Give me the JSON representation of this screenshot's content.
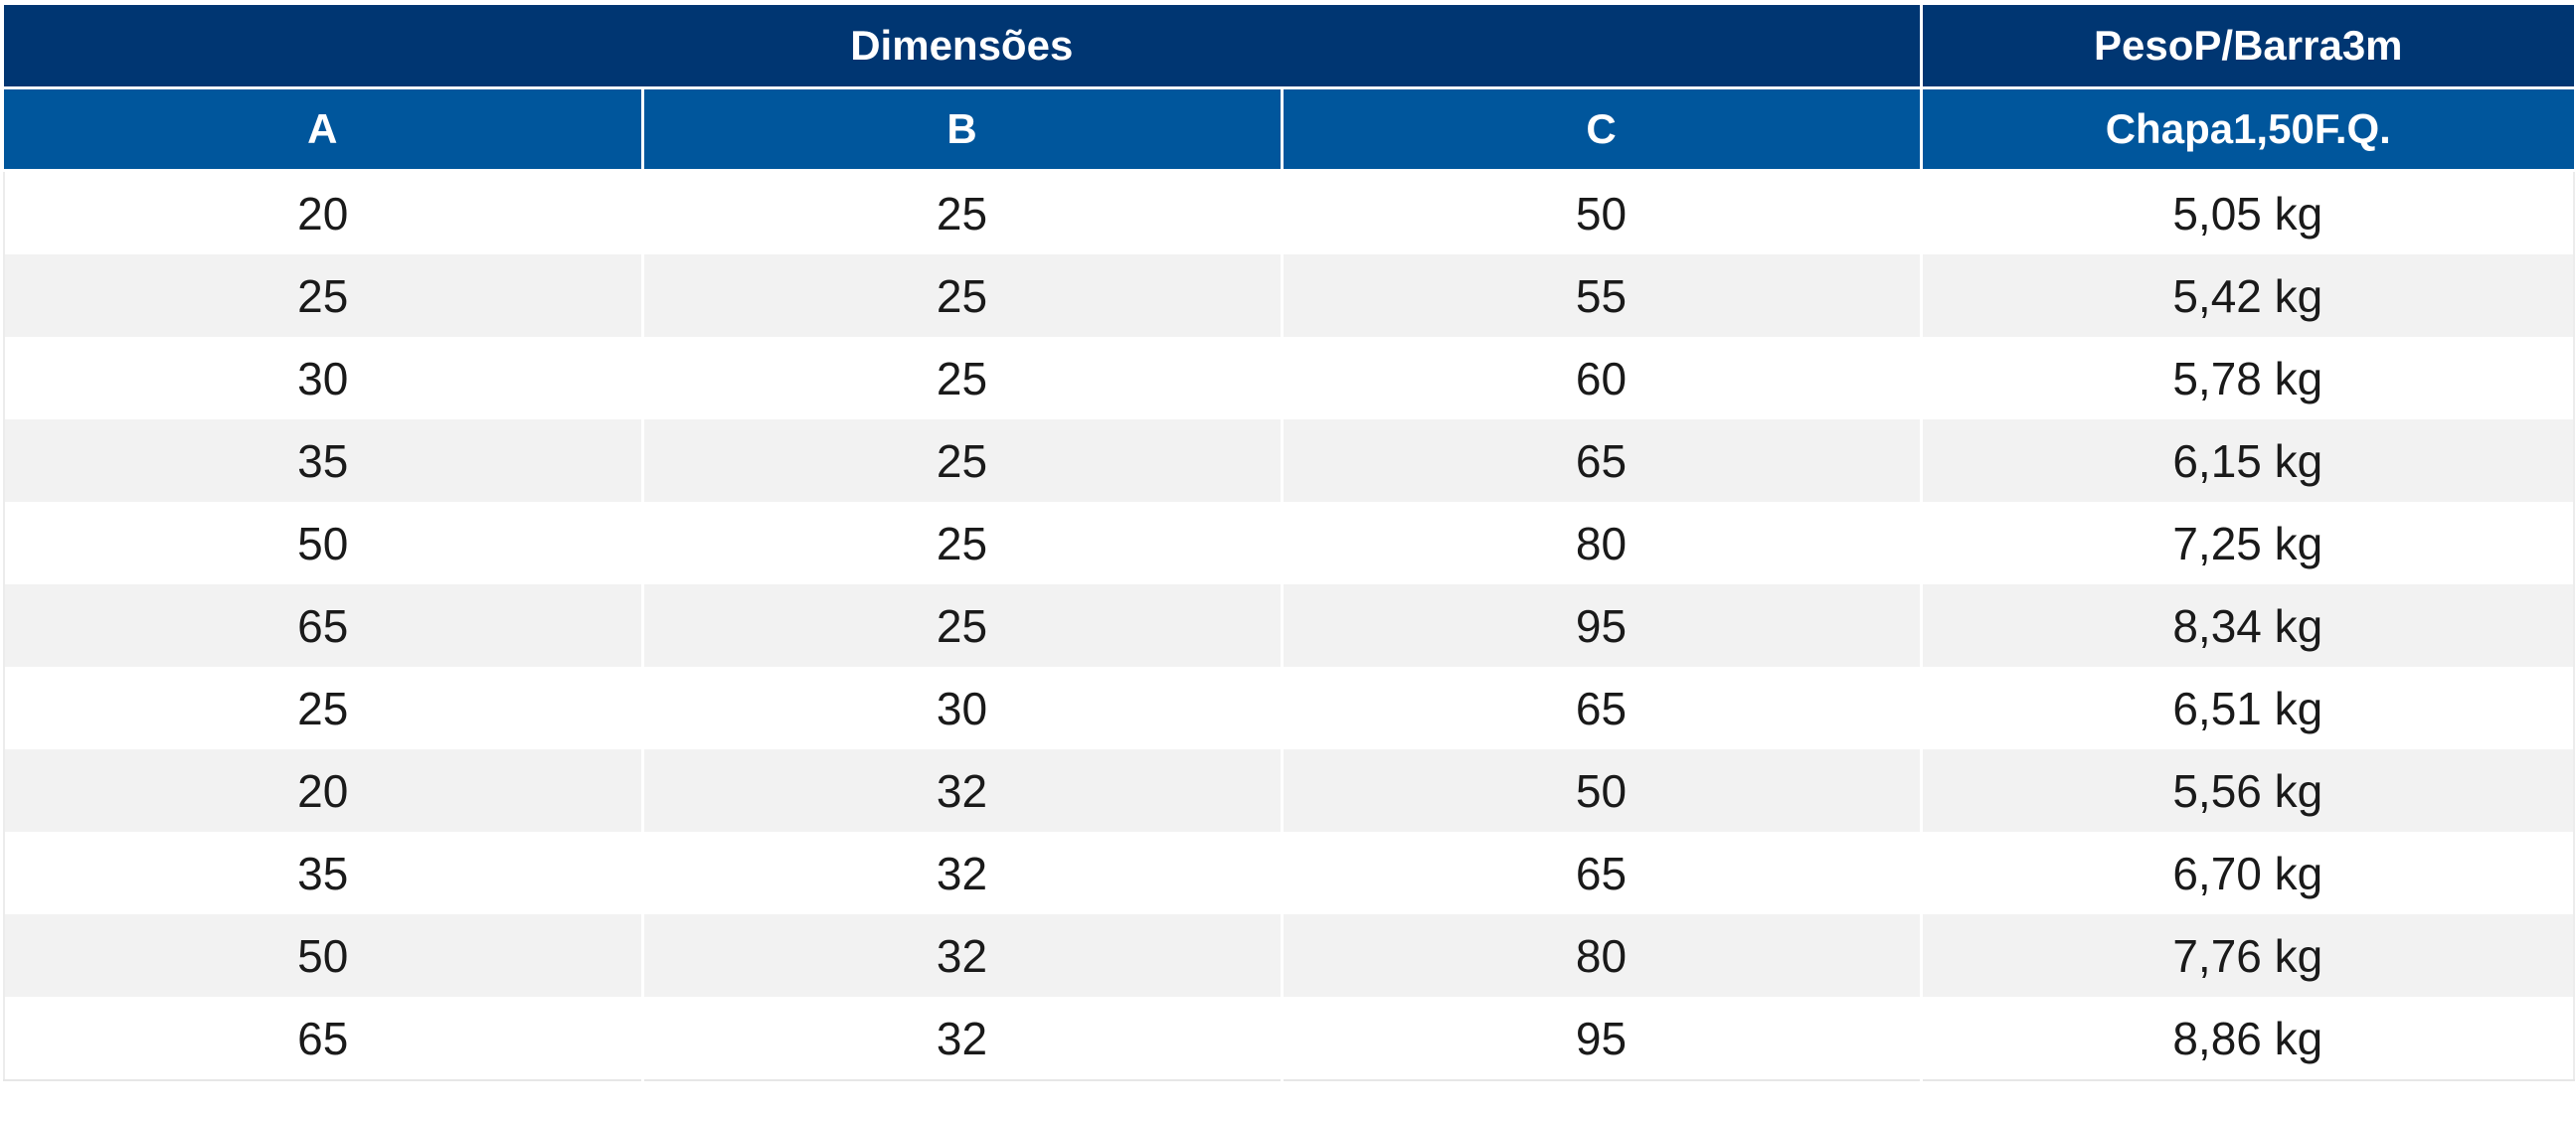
{
  "header": {
    "group_dimensions": "Dimensões",
    "group_weight": "PesoP/Barra3m",
    "col_a": "A",
    "col_b": "B",
    "col_c": "C",
    "col_weight": "Chapa1,50F.Q."
  },
  "rows": [
    {
      "a": "20",
      "b": "25",
      "c": "50",
      "weight": "5,05 kg"
    },
    {
      "a": "25",
      "b": "25",
      "c": "55",
      "weight": "5,42 kg"
    },
    {
      "a": "30",
      "b": "25",
      "c": "60",
      "weight": "5,78 kg"
    },
    {
      "a": "35",
      "b": "25",
      "c": "65",
      "weight": "6,15 kg"
    },
    {
      "a": "50",
      "b": "25",
      "c": "80",
      "weight": "7,25 kg"
    },
    {
      "a": "65",
      "b": "25",
      "c": "95",
      "weight": "8,34 kg"
    },
    {
      "a": "25",
      "b": "30",
      "c": "65",
      "weight": "6,51 kg"
    },
    {
      "a": "20",
      "b": "32",
      "c": "50",
      "weight": "5,56 kg"
    },
    {
      "a": "35",
      "b": "32",
      "c": "65",
      "weight": "6,70 kg"
    },
    {
      "a": "50",
      "b": "32",
      "c": "80",
      "weight": "7,76 kg"
    },
    {
      "a": "65",
      "b": "32",
      "c": "95",
      "weight": "8,86 kg"
    }
  ],
  "colors": {
    "header_dark": "#003672",
    "header_light": "#00569c",
    "row_alt": "#f2f2f2",
    "row_base": "#ffffff"
  }
}
